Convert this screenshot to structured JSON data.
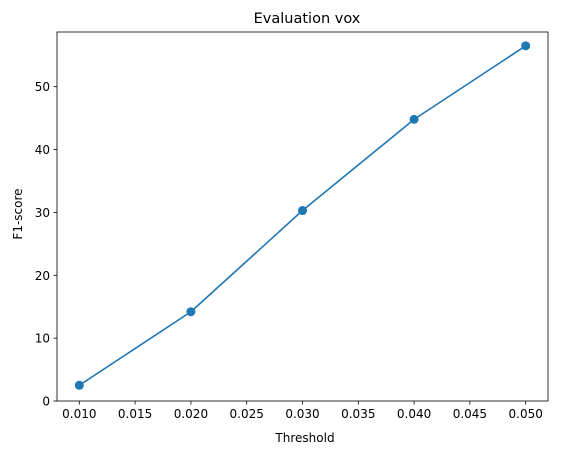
{
  "chart_data": {
    "type": "line",
    "title": "Evaluation vox",
    "xlabel": "Threshold",
    "ylabel": "F1-score",
    "x": [
      0.01,
      0.02,
      0.03,
      0.04,
      0.05
    ],
    "series": [
      {
        "values": [
          2.5,
          14.2,
          30.3,
          44.8,
          56.5
        ],
        "color": "#1f77b4",
        "marker": "circle"
      }
    ],
    "xlim": [
      0.008,
      0.052
    ],
    "ylim": [
      0,
      58.7
    ],
    "xticks": [
      "0.010",
      "0.015",
      "0.020",
      "0.025",
      "0.030",
      "0.035",
      "0.040",
      "0.045",
      "0.050"
    ],
    "yticks": [
      "0",
      "10",
      "20",
      "30",
      "40",
      "50"
    ],
    "grid": false,
    "legend": "none"
  }
}
